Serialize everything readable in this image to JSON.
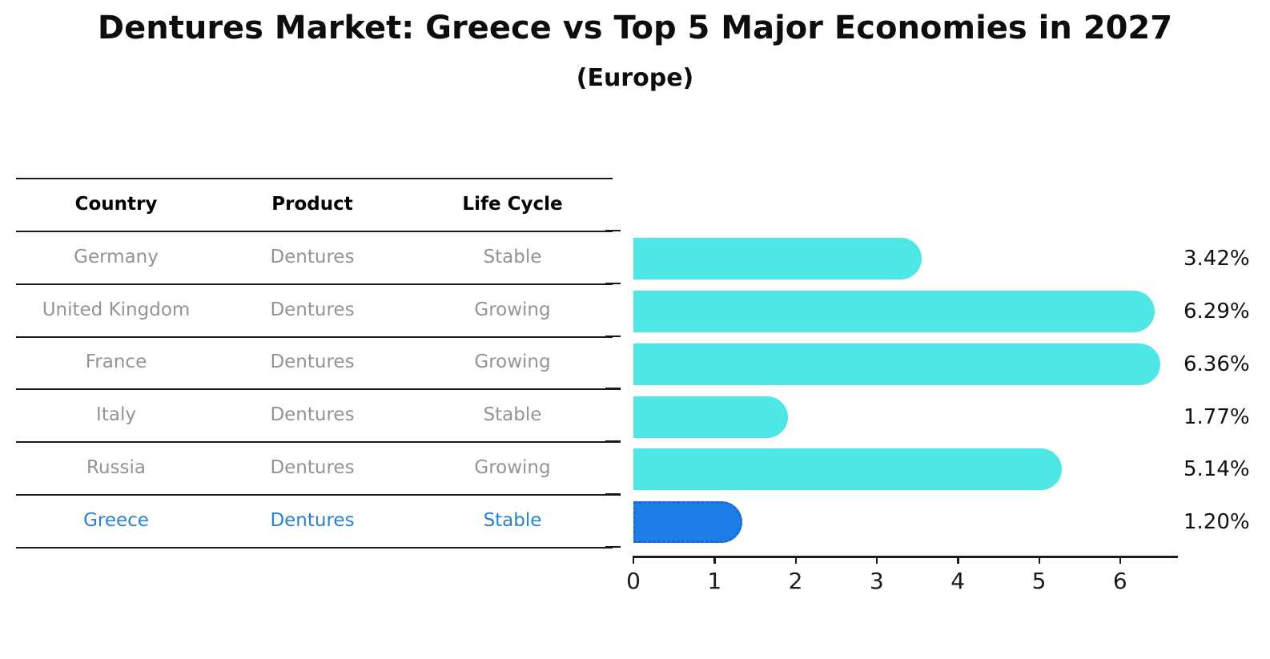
{
  "title": "Dentures Market: Greece vs Top 5 Major Economies in 2027",
  "subtitle": "(Europe)",
  "table": {
    "headers": [
      "Country",
      "Product",
      "Life Cycle"
    ],
    "rows": [
      {
        "country": "Germany",
        "product": "Dentures",
        "life_cycle": "Stable",
        "highlighted": false
      },
      {
        "country": "United Kingdom",
        "product": "Dentures",
        "life_cycle": "Growing",
        "highlighted": false
      },
      {
        "country": "France",
        "product": "Dentures",
        "life_cycle": "Growing",
        "highlighted": false
      },
      {
        "country": "Italy",
        "product": "Dentures",
        "life_cycle": "Stable",
        "highlighted": false
      },
      {
        "country": "Russia",
        "product": "Dentures",
        "life_cycle": "Growing",
        "highlighted": false
      },
      {
        "country": "Greece",
        "product": "Dentures",
        "life_cycle": "Stable",
        "highlighted": true
      }
    ]
  },
  "chart_data": {
    "type": "bar",
    "orientation": "horizontal",
    "title": "Dentures Market: Greece vs Top 5 Major Economies in 2027",
    "subtitle": "(Europe)",
    "categories": [
      "Germany",
      "United Kingdom",
      "France",
      "Italy",
      "Russia",
      "Greece"
    ],
    "values": [
      3.42,
      6.29,
      6.36,
      1.77,
      5.14,
      1.2
    ],
    "value_labels": [
      "3.42%",
      "6.29%",
      "6.36%",
      "1.77%",
      "5.14%",
      "1.20%"
    ],
    "x_ticks": [
      "0",
      "1",
      "2",
      "3",
      "4",
      "5",
      "6"
    ],
    "xlim": [
      0,
      6.7
    ],
    "grid": false,
    "legend": false,
    "highlight_index": 5
  },
  "colors": {
    "bar": "#4de8e5",
    "highlight_bar": "#1e7ee8",
    "highlight_bar_border": "#1a66d9",
    "highlight_text": "#2a80d5",
    "row_text": "#949494",
    "header_text": "#000000",
    "value_text": "#111111",
    "axis": "#1a1a1a",
    "background": "#ffffff"
  }
}
